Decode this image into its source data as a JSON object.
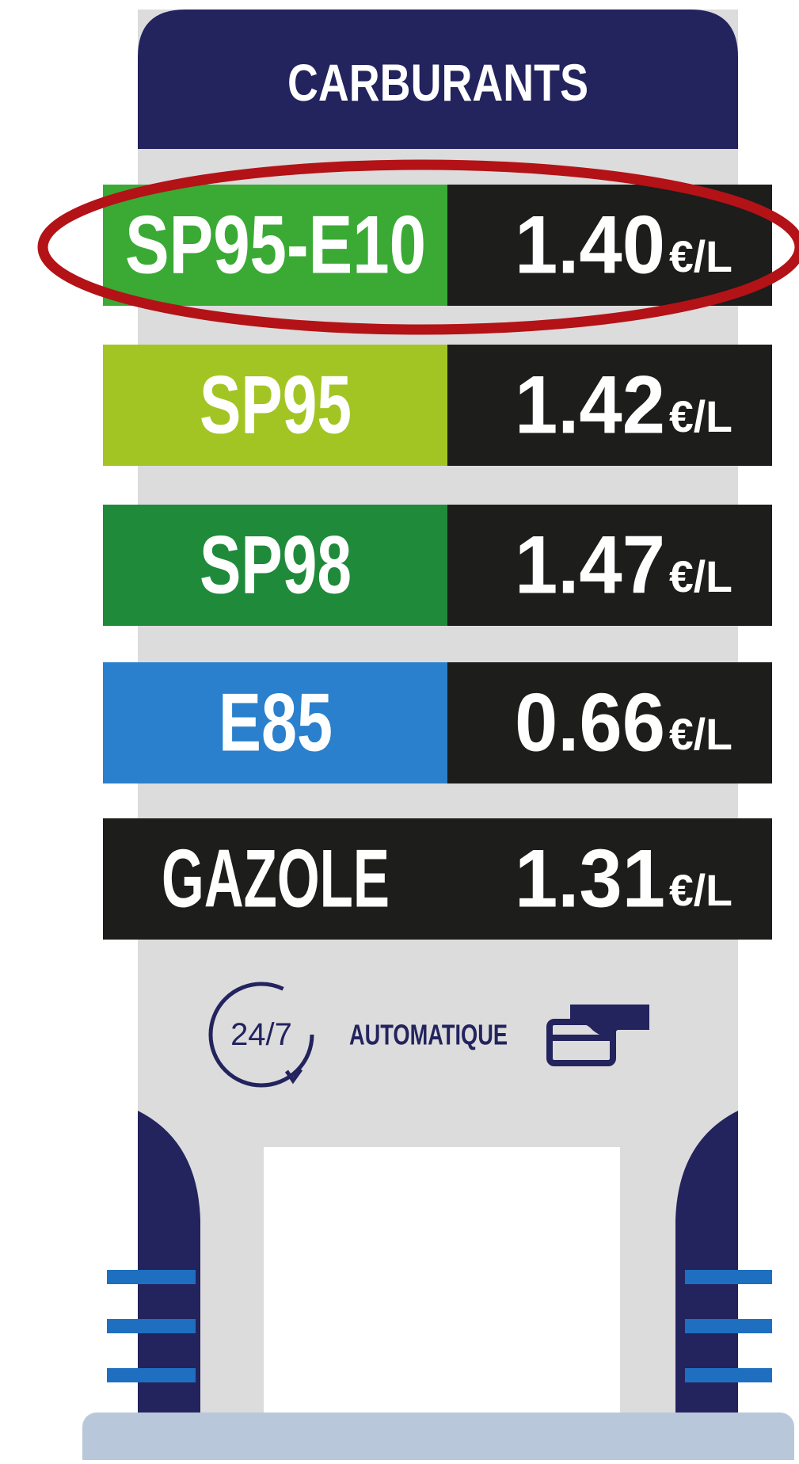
{
  "header": {
    "title": "CARBURANTS"
  },
  "fuels": [
    {
      "name": "SP95-E10",
      "price": "1.40",
      "unit": "€/L",
      "color": "#3aaa35"
    },
    {
      "name": "SP95",
      "price": "1.42",
      "unit": "€/L",
      "color": "#a2c523"
    },
    {
      "name": "SP98",
      "price": "1.47",
      "unit": "€/L",
      "color": "#1f8a3a"
    },
    {
      "name": "E85",
      "price": "0.66",
      "unit": "€/L",
      "color": "#2a80cc"
    },
    {
      "name": "GAZOLE",
      "price": "1.31",
      "unit": "€/L",
      "color": "#1d1d1b"
    }
  ],
  "footer": {
    "badge": "24/7",
    "label": "AUTOMATIQUE"
  }
}
